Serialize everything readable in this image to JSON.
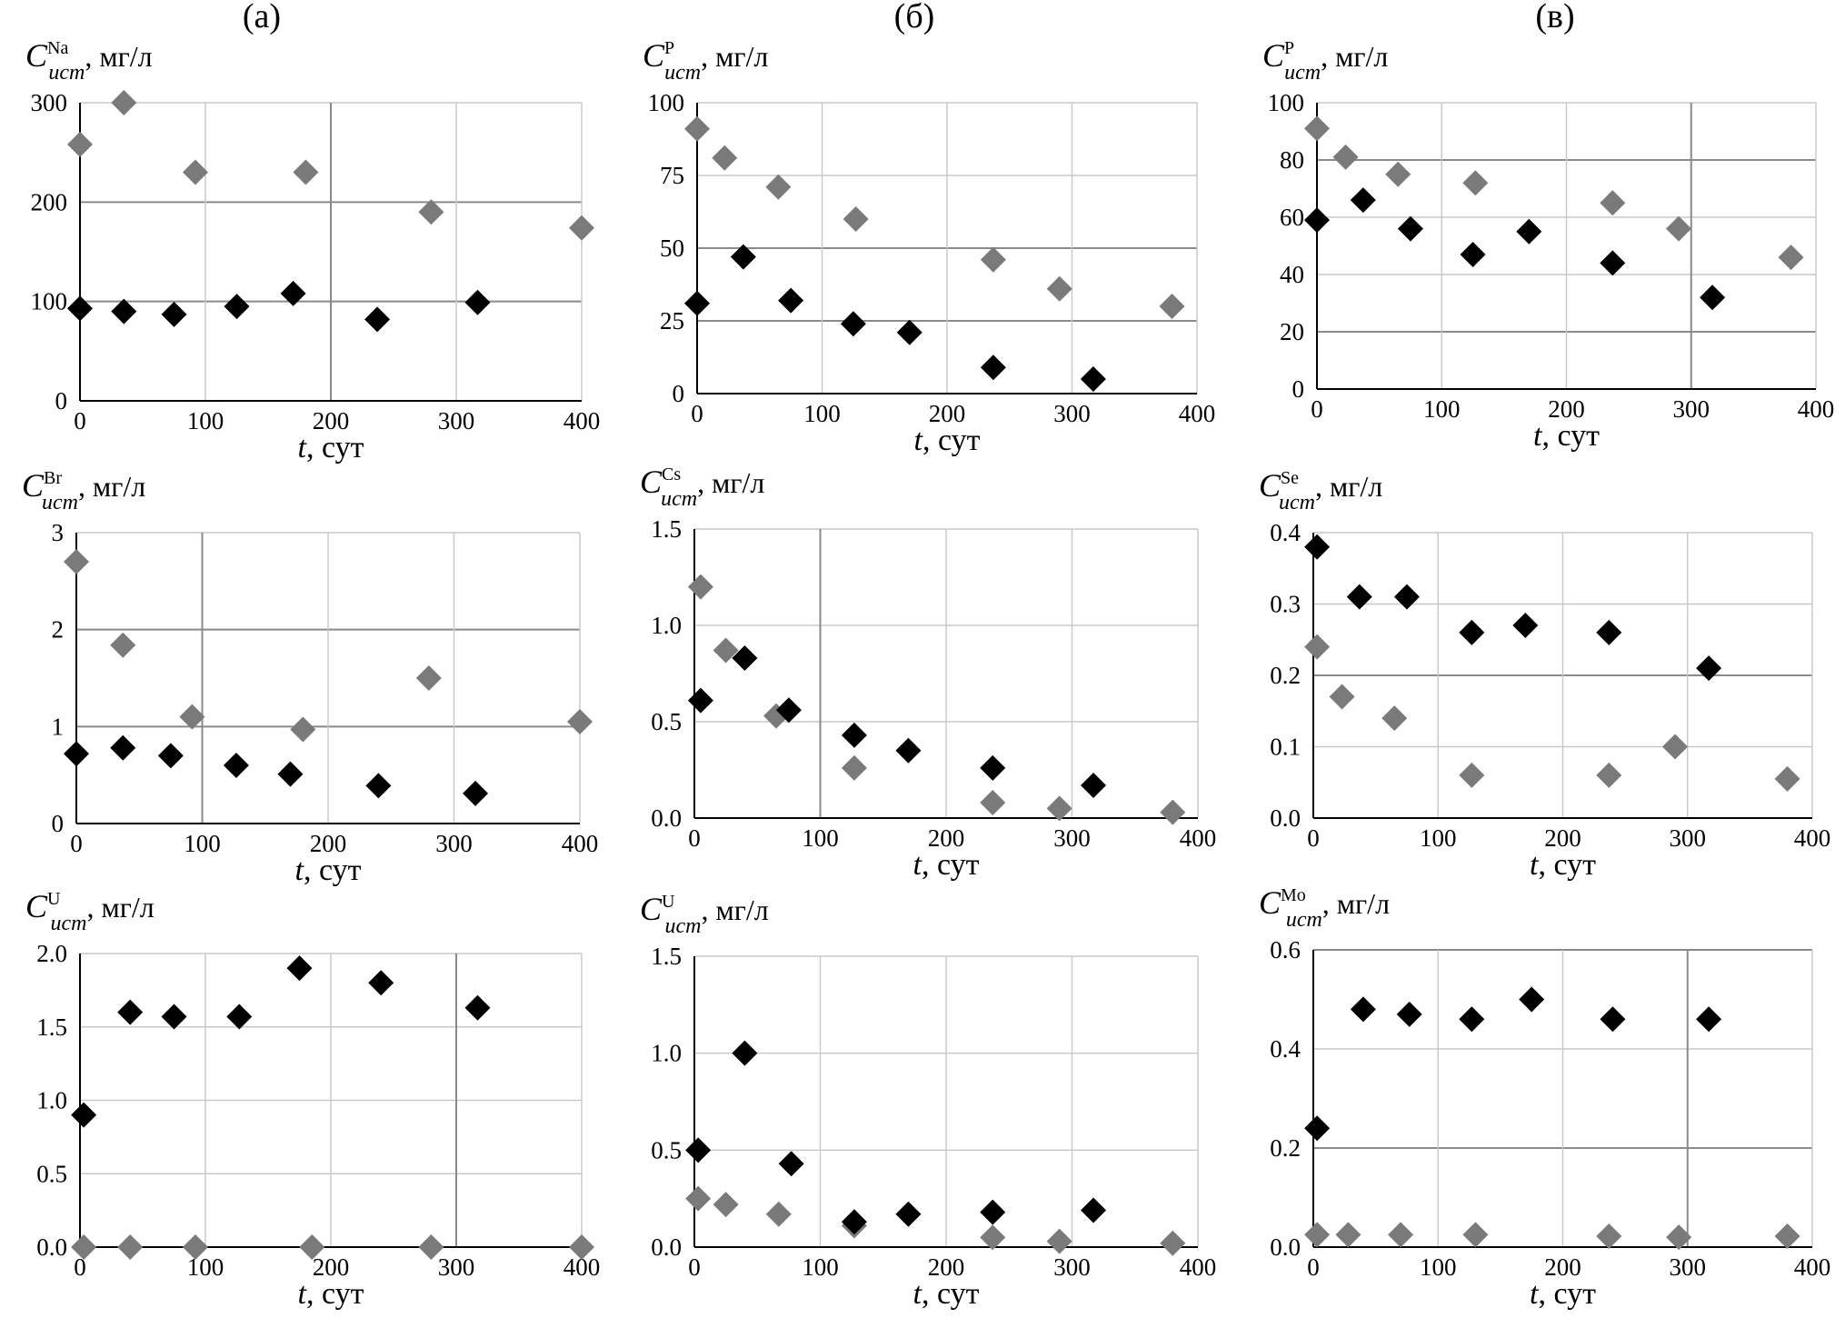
{
  "column_labels": [
    "(а)",
    "(б)",
    "(в)"
  ],
  "colors": {
    "series_black": "#000000",
    "series_gray": "#7a7a7a",
    "grid": "#c8c8c8",
    "grid_major": "#8a8a8a",
    "axis": "#000000"
  },
  "chart_data": [
    {
      "type": "scatter",
      "panel": "a1",
      "ylabel_base": "C",
      "ylabel_sup": "Na",
      "ylabel_sub": "ucm",
      "ylabel_units": ", мг/л",
      "xlabel_italic": "t",
      "xlabel_rest": ", сут",
      "xlim": [
        0,
        400
      ],
      "xticks": [
        "0",
        "100",
        "200",
        "300",
        "400"
      ],
      "xtick_values": [
        0,
        100,
        200,
        300,
        400
      ],
      "ylim": [
        0,
        300
      ],
      "yticks": [
        "0",
        "100",
        "200",
        "300"
      ],
      "ytick_values": [
        0,
        100,
        200,
        300
      ],
      "major_h": [
        100,
        200
      ],
      "major_v": [
        200
      ],
      "series": [
        {
          "name": "gray",
          "x": [
            0,
            35,
            92,
            180,
            280,
            400
          ],
          "y": [
            258,
            300,
            230,
            230,
            190,
            174
          ]
        },
        {
          "name": "black",
          "x": [
            0,
            35,
            75,
            125,
            170,
            237,
            317
          ],
          "y": [
            93,
            90,
            87,
            95,
            108,
            82,
            99
          ]
        }
      ]
    },
    {
      "type": "scatter",
      "panel": "b1",
      "ylabel_base": "C",
      "ylabel_sup": "P",
      "ylabel_sub": "ucm",
      "ylabel_units": ", мг/л",
      "xlabel_italic": "t",
      "xlabel_rest": ", сут",
      "xlim": [
        0,
        400
      ],
      "xticks": [
        "0",
        "100",
        "200",
        "300",
        "400"
      ],
      "xtick_values": [
        0,
        100,
        200,
        300,
        400
      ],
      "ylim": [
        0,
        100
      ],
      "yticks": [
        "0",
        "25",
        "50",
        "75",
        "100"
      ],
      "ytick_values": [
        0,
        25,
        50,
        75,
        100
      ],
      "major_h": [
        25,
        50
      ],
      "major_v": [],
      "series": [
        {
          "name": "gray",
          "x": [
            0,
            22,
            65,
            127,
            237,
            290,
            380
          ],
          "y": [
            91,
            81,
            71,
            60,
            46,
            36,
            30
          ]
        },
        {
          "name": "black",
          "x": [
            0,
            37,
            75,
            125,
            170,
            237,
            317
          ],
          "y": [
            31,
            47,
            32,
            24,
            21,
            9,
            5
          ]
        }
      ]
    },
    {
      "type": "scatter",
      "panel": "c1",
      "ylabel_base": "C",
      "ylabel_sup": "P",
      "ylabel_sub": "ucm",
      "ylabel_units": ", мг/л",
      "xlabel_italic": "t",
      "xlabel_rest": ", сут",
      "xlim": [
        0,
        400
      ],
      "xticks": [
        "0",
        "100",
        "200",
        "300",
        "400"
      ],
      "xtick_values": [
        0,
        100,
        200,
        300,
        400
      ],
      "ylim": [
        0,
        100
      ],
      "yticks": [
        "0",
        "20",
        "40",
        "60",
        "80",
        "100"
      ],
      "ytick_values": [
        0,
        20,
        40,
        60,
        80,
        100
      ],
      "major_h": [
        20,
        80
      ],
      "major_v": [
        300
      ],
      "series": [
        {
          "name": "gray",
          "x": [
            0,
            23,
            65,
            127,
            237,
            290,
            380
          ],
          "y": [
            91,
            81,
            75,
            72,
            65,
            56,
            46
          ]
        },
        {
          "name": "black",
          "x": [
            0,
            37,
            75,
            125,
            170,
            237,
            317
          ],
          "y": [
            59,
            66,
            56,
            47,
            55,
            44,
            32
          ]
        }
      ]
    },
    {
      "type": "scatter",
      "panel": "a2",
      "ylabel_base": "C",
      "ylabel_sup": "Br",
      "ylabel_sub": "ucm",
      "ylabel_units": ", мг/л",
      "xlabel_italic": "t",
      "xlabel_rest": ", сут",
      "xlim": [
        0,
        400
      ],
      "xticks": [
        "0",
        "100",
        "200",
        "300",
        "400"
      ],
      "xtick_values": [
        0,
        100,
        200,
        300,
        400
      ],
      "ylim": [
        0,
        3
      ],
      "yticks": [
        "0",
        "1",
        "2",
        "3"
      ],
      "ytick_values": [
        0,
        1,
        2,
        3
      ],
      "major_h": [
        1,
        2
      ],
      "major_v": [
        100
      ],
      "series": [
        {
          "name": "gray",
          "x": [
            0,
            37,
            92,
            180,
            280,
            400
          ],
          "y": [
            2.7,
            1.84,
            1.1,
            0.97,
            1.5,
            1.05
          ]
        },
        {
          "name": "black",
          "x": [
            0,
            37,
            75,
            127,
            170,
            240,
            317
          ],
          "y": [
            0.72,
            0.78,
            0.7,
            0.6,
            0.51,
            0.39,
            0.31
          ]
        }
      ]
    },
    {
      "type": "scatter",
      "panel": "b2",
      "ylabel_base": "C",
      "ylabel_sup": "Cs",
      "ylabel_sub": "ucm",
      "ylabel_units": ", мг/л",
      "xlabel_italic": "t",
      "xlabel_rest": ", сут",
      "xlim": [
        0,
        400
      ],
      "xticks": [
        "0",
        "100",
        "200",
        "300",
        "400"
      ],
      "xtick_values": [
        0,
        100,
        200,
        300,
        400
      ],
      "ylim": [
        0,
        1.5
      ],
      "yticks": [
        "0.0",
        "0.5",
        "1.0",
        "1.5"
      ],
      "ytick_values": [
        0,
        0.5,
        1.0,
        1.5
      ],
      "major_h": [],
      "major_v": [
        100
      ],
      "series": [
        {
          "name": "gray",
          "x": [
            5,
            25,
            65,
            127,
            237,
            290,
            380
          ],
          "y": [
            1.2,
            0.87,
            0.53,
            0.26,
            0.08,
            0.05,
            0.03
          ]
        },
        {
          "name": "black",
          "x": [
            5,
            40,
            75,
            127,
            170,
            237,
            317
          ],
          "y": [
            0.61,
            0.83,
            0.56,
            0.43,
            0.35,
            0.26,
            0.17
          ]
        }
      ]
    },
    {
      "type": "scatter",
      "panel": "c2",
      "ylabel_base": "C",
      "ylabel_sup": "Se",
      "ylabel_sub": "ucm",
      "ylabel_units": ", мг/л",
      "xlabel_italic": "t",
      "xlabel_rest": ", сут",
      "xlim": [
        0,
        400
      ],
      "xticks": [
        "0",
        "100",
        "200",
        "300",
        "400"
      ],
      "xtick_values": [
        0,
        100,
        200,
        300,
        400
      ],
      "ylim": [
        0,
        0.4
      ],
      "yticks": [
        "0.0",
        "0.1",
        "0.2",
        "0.3",
        "0.4"
      ],
      "ytick_values": [
        0,
        0.1,
        0.2,
        0.3,
        0.4
      ],
      "major_h": [
        0.2
      ],
      "major_v": [],
      "series": [
        {
          "name": "gray",
          "x": [
            3,
            23,
            65,
            127,
            237,
            290,
            380
          ],
          "y": [
            0.24,
            0.17,
            0.14,
            0.06,
            0.06,
            0.1,
            0.055
          ]
        },
        {
          "name": "black",
          "x": [
            3,
            37,
            75,
            127,
            170,
            237,
            317
          ],
          "y": [
            0.38,
            0.31,
            0.31,
            0.26,
            0.27,
            0.26,
            0.21
          ]
        }
      ]
    },
    {
      "type": "scatter",
      "panel": "a3",
      "ylabel_base": "C",
      "ylabel_sup": "U",
      "ylabel_sub": "ucm",
      "ylabel_units": ", мг/л",
      "xlabel_italic": "t",
      "xlabel_rest": ", сут",
      "xlim": [
        0,
        400
      ],
      "xticks": [
        "0",
        "100",
        "200",
        "300",
        "400"
      ],
      "xtick_values": [
        0,
        100,
        200,
        300,
        400
      ],
      "ylim": [
        0,
        2
      ],
      "yticks": [
        "0.0",
        "0.5",
        "1.0",
        "1.5",
        "2.0"
      ],
      "ytick_values": [
        0,
        0.5,
        1.0,
        1.5,
        2.0
      ],
      "major_h": [],
      "major_v": [
        300
      ],
      "series": [
        {
          "name": "gray",
          "x": [
            3,
            40,
            92,
            185,
            280,
            400
          ],
          "y": [
            0.0,
            0.0,
            0.0,
            0.0,
            0.0,
            0.0
          ]
        },
        {
          "name": "black",
          "x": [
            3,
            40,
            75,
            127,
            175,
            240,
            317
          ],
          "y": [
            0.9,
            1.6,
            1.57,
            1.57,
            1.9,
            1.8,
            1.63
          ]
        }
      ]
    },
    {
      "type": "scatter",
      "panel": "b3",
      "ylabel_base": "C",
      "ylabel_sup": "U",
      "ylabel_sub": "ucm",
      "ylabel_units": ", мг/л",
      "xlabel_italic": "t",
      "xlabel_rest": ", сут",
      "xlim": [
        0,
        400
      ],
      "xticks": [
        "0",
        "100",
        "200",
        "300",
        "400"
      ],
      "xtick_values": [
        0,
        100,
        200,
        300,
        400
      ],
      "ylim": [
        0,
        1.5
      ],
      "yticks": [
        "0.0",
        "0.5",
        "1.0",
        "1.5"
      ],
      "ytick_values": [
        0,
        0.5,
        1.0,
        1.5
      ],
      "major_h": [],
      "major_v": [],
      "series": [
        {
          "name": "gray",
          "x": [
            3,
            25,
            67,
            127,
            237,
            290,
            380
          ],
          "y": [
            0.25,
            0.22,
            0.17,
            0.11,
            0.05,
            0.03,
            0.02
          ]
        },
        {
          "name": "black",
          "x": [
            3,
            40,
            77,
            127,
            170,
            237,
            317
          ],
          "y": [
            0.5,
            1.0,
            0.43,
            0.13,
            0.17,
            0.18,
            0.19
          ]
        }
      ]
    },
    {
      "type": "scatter",
      "panel": "c3",
      "ylabel_base": "C",
      "ylabel_sup": "Mo",
      "ylabel_sub": "ucm",
      "ylabel_units": ", мг/л",
      "xlabel_italic": "t",
      "xlabel_rest": ", сут",
      "xlim": [
        0,
        400
      ],
      "xticks": [
        "0",
        "100",
        "200",
        "300",
        "400"
      ],
      "xtick_values": [
        0,
        100,
        200,
        300,
        400
      ],
      "ylim": [
        0,
        0.6
      ],
      "yticks": [
        "0.0",
        "0.2",
        "0.4",
        "0.6"
      ],
      "ytick_values": [
        0,
        0.2,
        0.4,
        0.6
      ],
      "major_h": [
        0.2,
        0.6
      ],
      "major_v": [
        300
      ],
      "series": [
        {
          "name": "gray",
          "x": [
            3,
            28,
            70,
            130,
            237,
            293,
            380
          ],
          "y": [
            0.025,
            0.025,
            0.025,
            0.025,
            0.022,
            0.02,
            0.022
          ]
        },
        {
          "name": "black",
          "x": [
            3,
            40,
            77,
            127,
            175,
            240,
            317
          ],
          "y": [
            0.24,
            0.48,
            0.47,
            0.46,
            0.5,
            0.46,
            0.46
          ]
        }
      ]
    }
  ]
}
